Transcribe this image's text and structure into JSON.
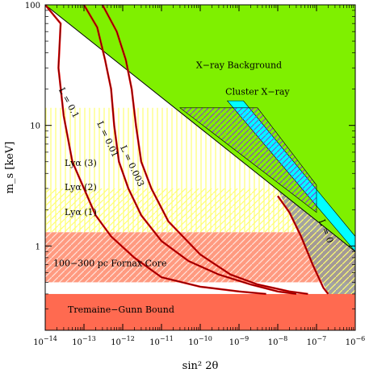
{
  "chart_data": {
    "type": "line",
    "xlabel": "sin² 2θ",
    "ylabel": "m_s [keV]",
    "x_scale": "log",
    "y_scale": "log",
    "xlim": [
      1e-14,
      1e-06
    ],
    "ylim": [
      0.2,
      100
    ],
    "x_ticks": [
      {
        "value": 1e-14,
        "base": "10",
        "exp": "−14"
      },
      {
        "value": 1e-13,
        "base": "10",
        "exp": "−13"
      },
      {
        "value": 1e-12,
        "base": "10",
        "exp": "−12"
      },
      {
        "value": 1e-11,
        "base": "10",
        "exp": "−11"
      },
      {
        "value": 1e-10,
        "base": "10",
        "exp": "−10"
      },
      {
        "value": 1e-09,
        "base": "10",
        "exp": "−9"
      },
      {
        "value": 1e-08,
        "base": "10",
        "exp": "−8"
      },
      {
        "value": 1e-07,
        "base": "10",
        "exp": "−7"
      },
      {
        "value": 1e-06,
        "base": "10",
        "exp": "−6"
      }
    ],
    "y_ticks": [
      {
        "value": 1,
        "label": "1"
      },
      {
        "value": 10,
        "label": "10"
      },
      {
        "value": 100,
        "label": "100"
      }
    ],
    "regions": [
      {
        "name": "X-ray Background",
        "color": "#7ff000",
        "label": "X−ray Background",
        "label_at": [
          1e-09,
          30
        ]
      },
      {
        "name": "Cluster X-ray",
        "color": "#00ffff",
        "label": "Cluster X−ray",
        "label_at": [
          3e-09,
          18
        ]
      },
      {
        "name": "Lyα (3)",
        "color": "#ffff70",
        "label": "Lyα (3)",
        "min_mass": 3.0
      },
      {
        "name": "Lyα (2)",
        "color": "#ffff70",
        "label": "Lyα (2)",
        "min_mass": 2.0
      },
      {
        "name": "Lyα (1)",
        "color": "#ffff70",
        "label": "Lyα (1)",
        "min_mass": 1.3
      },
      {
        "name": "100-300 pc Fornax Core",
        "color": "#ff9a80",
        "label": "100−300 pc Fornax Core",
        "range": [
          0.5,
          1.3
        ]
      },
      {
        "name": "Tremaine-Gunn Bound",
        "color": "#ff6a50",
        "label": "Tremaine−Gunn Bound",
        "max_mass": 0.4
      },
      {
        "name": "Excluded (grey)",
        "color": "#999999"
      },
      {
        "name": "Hatched purple",
        "color": "#8a2be2"
      }
    ],
    "series": [
      {
        "name": "L = 0.1",
        "label": "L = 0.1",
        "color": "#e00000",
        "points": [
          [
            1e-14,
            100
          ],
          [
            2.5e-14,
            70
          ],
          [
            2.2e-14,
            30
          ],
          [
            3e-14,
            12
          ],
          [
            5e-14,
            5
          ],
          [
            1e-13,
            3
          ],
          [
            2e-13,
            1.8
          ],
          [
            5e-13,
            1.2
          ],
          [
            2e-12,
            0.8
          ],
          [
            1e-11,
            0.55
          ],
          [
            1e-10,
            0.46
          ],
          [
            1e-09,
            0.42
          ],
          [
            5e-09,
            0.4
          ]
        ]
      },
      {
        "name": "L = 0.01",
        "label": "L = 0.01",
        "color": "#e00000",
        "points": [
          [
            1e-13,
            100
          ],
          [
            2.2e-13,
            65
          ],
          [
            3.5e-13,
            35
          ],
          [
            5e-13,
            20
          ],
          [
            6e-13,
            10
          ],
          [
            8e-13,
            5
          ],
          [
            1.4e-12,
            3
          ],
          [
            3e-12,
            1.8
          ],
          [
            1e-11,
            1.1
          ],
          [
            5e-11,
            0.75
          ],
          [
            3e-10,
            0.58
          ],
          [
            2e-09,
            0.48
          ],
          [
            1e-08,
            0.42
          ],
          [
            3e-08,
            0.4
          ]
        ]
      },
      {
        "name": "L = 0.003",
        "label": "L = 0.003",
        "color": "#e00000",
        "points": [
          [
            3e-13,
            100
          ],
          [
            7e-13,
            60
          ],
          [
            1.2e-12,
            35
          ],
          [
            1.7e-12,
            20
          ],
          [
            2.2e-12,
            10
          ],
          [
            3e-12,
            5
          ],
          [
            5.5e-12,
            3
          ],
          [
            1.5e-11,
            1.6
          ],
          [
            1e-10,
            0.85
          ],
          [
            6e-10,
            0.58
          ],
          [
            3e-09,
            0.48
          ],
          [
            2e-08,
            0.42
          ],
          [
            6e-08,
            0.4
          ]
        ]
      },
      {
        "name": "L = 0",
        "label": "L = 0",
        "color": "#e00000",
        "points": [
          [
            1e-08,
            2.6
          ],
          [
            2e-08,
            1.9
          ],
          [
            4e-08,
            1.2
          ],
          [
            8e-08,
            0.7
          ],
          [
            1.5e-07,
            0.45
          ],
          [
            2e-07,
            0.4
          ]
        ]
      }
    ],
    "annotations": [
      {
        "text": "L = 0.1",
        "at": [
          3.5e-14,
          15
        ],
        "rotate": 62
      },
      {
        "text": "L = 0.01",
        "at": [
          3.5e-13,
          7.5
        ],
        "rotate": 65
      },
      {
        "text": "L = 0.003",
        "at": [
          1.5e-12,
          4.5
        ],
        "rotate": 65
      },
      {
        "text": "L = 0",
        "at": [
          1.5e-07,
          1.3
        ],
        "rotate": 68
      }
    ]
  }
}
